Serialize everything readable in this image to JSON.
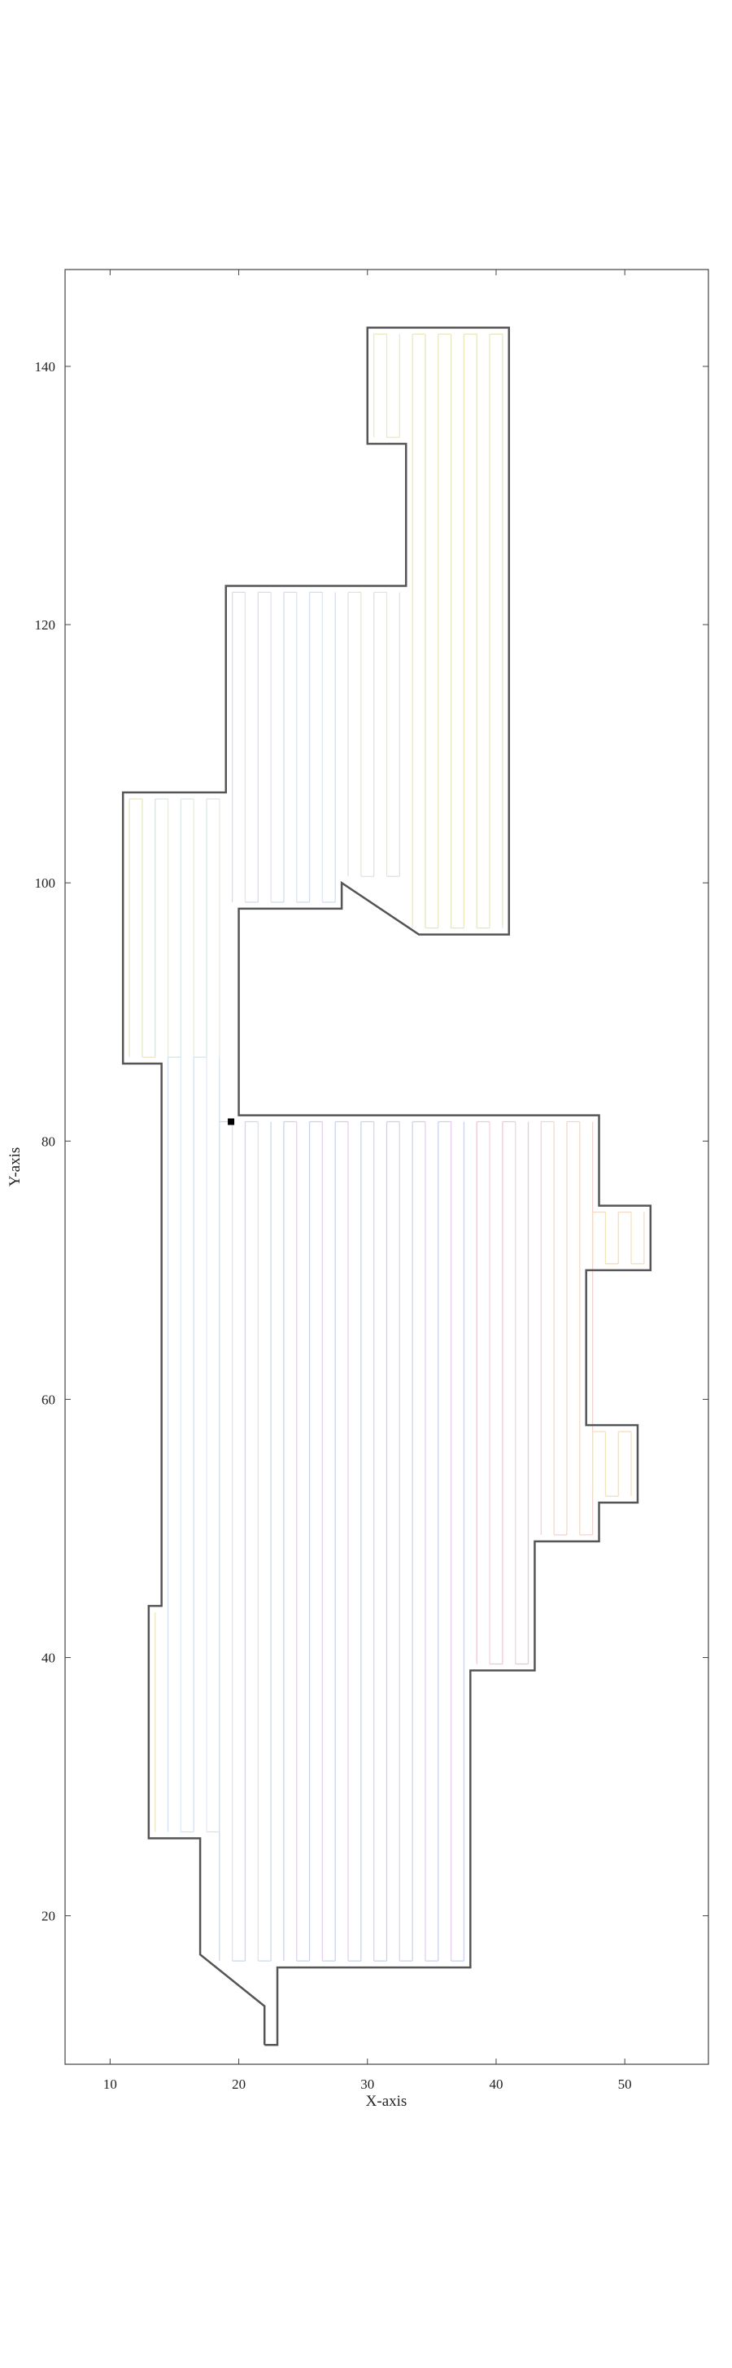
{
  "chart_data": {
    "type": "line",
    "title": "",
    "xlabel": "X-axis",
    "ylabel": "Y-axis",
    "xlim": [
      6.5,
      56.5
    ],
    "ylim": [
      8.5,
      147.5
    ],
    "xticks": [
      10,
      20,
      30,
      40,
      50
    ],
    "yticks": [
      20,
      40,
      60,
      80,
      100,
      120,
      140
    ],
    "grid": false,
    "legend": "none",
    "boundary": {
      "color": "#555555",
      "points": [
        [
          22,
          10
        ],
        [
          23,
          10
        ],
        [
          23,
          16
        ],
        [
          38,
          16
        ],
        [
          38,
          39
        ],
        [
          43,
          39
        ],
        [
          43,
          49
        ],
        [
          48,
          49
        ],
        [
          48,
          52
        ],
        [
          51,
          52
        ],
        [
          51,
          58
        ],
        [
          47,
          58
        ],
        [
          47,
          70
        ],
        [
          52,
          70
        ],
        [
          52,
          75
        ],
        [
          48,
          75
        ],
        [
          48,
          82
        ],
        [
          20,
          82
        ],
        [
          20,
          98
        ],
        [
          28,
          98
        ],
        [
          28,
          100
        ],
        [
          34,
          96
        ],
        [
          41,
          96
        ],
        [
          41,
          143
        ],
        [
          30,
          143
        ],
        [
          30,
          134
        ],
        [
          33,
          134
        ],
        [
          33,
          123
        ],
        [
          19,
          123
        ],
        [
          19,
          107
        ],
        [
          11,
          107
        ],
        [
          11,
          86
        ],
        [
          14,
          86
        ],
        [
          14,
          44
        ],
        [
          13,
          44
        ],
        [
          13,
          26
        ],
        [
          17,
          26
        ],
        [
          17,
          17
        ],
        [
          22,
          13
        ],
        [
          22,
          10
        ]
      ]
    },
    "marker": {
      "x": 19.4,
      "y": 81.5,
      "color": "#000000"
    },
    "sweep_regions": [
      {
        "x_start": 23.5,
        "x_end": 37.5,
        "y_bottom": 16.5,
        "y_top": 81.5,
        "color_a": "#c9d4ec",
        "color_b": "#e6d0ee"
      },
      {
        "x_start": 18.5,
        "x_end": 22.5,
        "y_bottom": 16.5,
        "y_top": 81.5,
        "color_a": "#cdd8ee",
        "color_b": "#d8e4f2"
      },
      {
        "x_start": 14.5,
        "x_end": 18.5,
        "y_bottom": 26.5,
        "y_top": 86.5,
        "color_a": "#d6e2f1",
        "color_b": "#e2ecf4"
      },
      {
        "x_start": 38.5,
        "x_end": 42.5,
        "y_bottom": 39.5,
        "y_top": 81.5,
        "color_a": "#f0c9cf",
        "color_b": "#f3d6d8"
      },
      {
        "x_start": 43.5,
        "x_end": 47.5,
        "y_bottom": 49.5,
        "y_top": 81.5,
        "color_a": "#f3d3d0",
        "color_b": "#f4dcc8"
      },
      {
        "x_start": 47.5,
        "x_end": 50.5,
        "y_bottom": 52.5,
        "y_top": 57.5,
        "color_a": "#f2e0c4",
        "color_b": "#efe6c0"
      },
      {
        "x_start": 47.5,
        "x_end": 51.5,
        "y_bottom": 70.5,
        "y_top": 74.5,
        "color_a": "#f2dcc8",
        "color_b": "#efe6c0"
      },
      {
        "x_start": 11.5,
        "x_end": 13.5,
        "y_bottom": 86.5,
        "y_top": 106.5,
        "color_a": "#ece6be",
        "color_b": "#e6e7c2"
      },
      {
        "x_start": 13.5,
        "x_end": 18.5,
        "y_bottom": 86.5,
        "y_top": 106.5,
        "color_a": "#dde7ea",
        "color_b": "#e6ecde"
      },
      {
        "x_start": 19.5,
        "x_end": 27.5,
        "y_bottom": 98.5,
        "y_top": 122.5,
        "color_a": "#d3ddf0",
        "color_b": "#dde6f2"
      },
      {
        "x_start": 28.5,
        "x_end": 32.5,
        "y_bottom": 100.5,
        "y_top": 122.5,
        "color_a": "#dbe6dc",
        "color_b": "#e6eacb"
      },
      {
        "x_start": 33.5,
        "x_end": 40.5,
        "y_bottom": 96.5,
        "y_top": 142.5,
        "color_a": "#ece6bc",
        "color_b": "#e6e7c2"
      },
      {
        "x_start": 30.5,
        "x_end": 32.5,
        "y_bottom": 134.5,
        "y_top": 142.5,
        "color_a": "#efe8bc",
        "color_b": "#e9e9c2"
      },
      {
        "x_start": 13.5,
        "x_end": 13.5,
        "y_bottom": 26.5,
        "y_top": 43.5,
        "color_a": "#ece6be",
        "color_b": "#ece6be"
      }
    ]
  }
}
